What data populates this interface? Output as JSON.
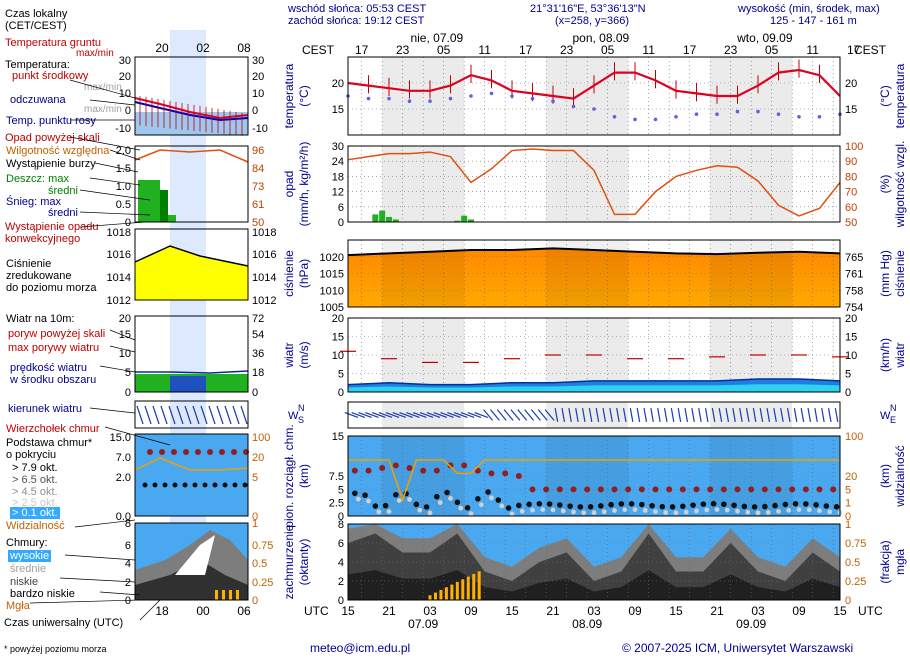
{
  "header": {
    "sunrise": "wschód słońca: 05:53 CEST",
    "sunset": "zachód słońca: 19:12 CEST",
    "coords": "21°31'16\"E, 53°36'13\"N",
    "grid": "(x=258,  y=366)",
    "elev_title": "wysokość (min, środek, max)",
    "elev_values": "125 - 147 - 161 m",
    "cest": "CEST",
    "utc": "UTC"
  },
  "days_top": [
    {
      "label": "nie, 07.09",
      "hour": 13
    },
    {
      "label": "pon, 08.09",
      "hour": 37
    },
    {
      "label": "wto, 09.09",
      "hour": 61
    }
  ],
  "days_bottom": [
    {
      "label": "07.09",
      "hour": 11
    },
    {
      "label": "08.09",
      "hour": 35
    },
    {
      "label": "09.09",
      "hour": 59
    }
  ],
  "cest_ticks": [
    "17",
    "23",
    "05",
    "11",
    "17",
    "23",
    "05",
    "11",
    "17",
    "23",
    "05",
    "11",
    "17"
  ],
  "utc_ticks": [
    "15",
    "21",
    "03",
    "09",
    "15",
    "21",
    "03",
    "09",
    "15",
    "21",
    "03",
    "09",
    "15"
  ],
  "legend": {
    "local_time": "Czas lokalny",
    "local_time2": "(CET/CEST)",
    "ground_temp": "Temperatura gruntu",
    "ground_temp_mm": "max/min",
    "temperature": "Temperatura:",
    "mid_point": "punkt środkowy",
    "max_min": "max/min",
    "felt": "odczuwana",
    "felt_mm": "max/min",
    "dew": "Temp. punktu rosy",
    "precip_above": "Opad powyżej skali",
    "humidity": "Wilgotność względna",
    "storm": "Wystąpienie burzy",
    "rain_max": "Deszcz: max",
    "rain_avg": "średni",
    "snow_max": "Śnieg:   max",
    "snow_avg": "średni",
    "conv": "Wystąpienie opadu",
    "conv2": "konwekcyjnego",
    "pressure": "Ciśnienie",
    "pressure2": "zredukowane",
    "pressure3": "do poziomu morza",
    "wind": "Wiatr na 10m:",
    "gust_above": "poryw powyżej skali",
    "gust_max": "max porywy wiatru",
    "wind_speed": "prędkość wiatru",
    "wind_area": "w środku obszaru",
    "wind_dir": "kierunek wiatru",
    "cloud_top": "Wierzchołek chmur",
    "cloud_base": "Podstawa chmur*",
    "cloud_base2": "o pokryciu",
    "okt1": "> 7.9 okt.",
    "okt2": "> 6.5 okt.",
    "okt3": "> 4.5 okt.",
    "okt4": "> 2.5 okt.",
    "okt5": "> 0.1 okt.",
    "visibility": "Widzialność",
    "clouds": "Chmury:",
    "high": "wysokie",
    "mid": "średnie",
    "low": "niskie",
    "very_low": "bardzo niskie",
    "fog": "Mgła",
    "utc_time": "Czas uniwersalny (UTC)",
    "footnote": "* powyżej poziomu morza"
  },
  "mini_ticks_top": [
    "20",
    "02",
    "08"
  ],
  "mini_ticks_bottom": [
    "18",
    "00",
    "06"
  ],
  "axes": {
    "temp_l": "temperatura",
    "temp_l2": "(°C)",
    "temp_r": "temperatura",
    "temp_r2": "(°C)",
    "prec_l": "opad",
    "prec_l2": "(mm/h, kg/m²/h)",
    "prec_r": "wilgotność wzgl.",
    "prec_r2": "(%)",
    "pres_l": "ciśnienie",
    "pres_l2": "(hPa)",
    "pres_r": "ciśnienie",
    "pres_r2": "(mm Hg)",
    "wind_l": "wiatr",
    "wind_l2": "(m/s)",
    "wind_r": "wiatr",
    "wind_r2": "(km/h)",
    "cloud_l": "pion. rozciągł. chm.",
    "cloud_l2": "(km)",
    "cloud_r": "widzialność",
    "cloud_r2": "(km)",
    "cc_l": "zachmurzenie",
    "cc_l2": "(oktanty)",
    "cc_r": "mgła",
    "cc_r2": "(frakcja)",
    "compass_n": "N",
    "compass_w": "W",
    "compass_e": "E",
    "compass_s": "S"
  },
  "footer": {
    "email": "meteo@icm.edu.pl",
    "copyright": "© 2007-2025 ICM, Uniwersytet Warszawski"
  },
  "chart_data": [
    {
      "type": "line",
      "name": "temperature",
      "x_unit": "hours from 15 UTC 06.09",
      "ylim": [
        10,
        25
      ],
      "yticks": [
        15,
        20
      ],
      "x": [
        0,
        3,
        6,
        9,
        12,
        15,
        18,
        21,
        24,
        27,
        30,
        33,
        36,
        39,
        42,
        45,
        48,
        51,
        54,
        57,
        60,
        63,
        66,
        69,
        72
      ],
      "series": [
        {
          "name": "punkt środkowy",
          "values": [
            20,
            19.5,
            19,
            18.5,
            18.5,
            19.5,
            21.5,
            20.5,
            18.5,
            18,
            17.5,
            17,
            19.5,
            22,
            22,
            20.5,
            18.5,
            18,
            17.5,
            17.5,
            19.5,
            22,
            22.5,
            21.5,
            17.5
          ]
        },
        {
          "name": "Temp. punktu rosy",
          "values": [
            17.5,
            17,
            17,
            16.5,
            16.5,
            17,
            17.5,
            18,
            17.5,
            17,
            16.5,
            15.5,
            15,
            13.5,
            13,
            13,
            13.5,
            14,
            14,
            14.5,
            14.5,
            14,
            13.5,
            13.5,
            14
          ]
        }
      ],
      "label_series": [
        {
          "name": "Temperatura gruntu max/min",
          "values": [
            17.5,
            17,
            17,
            16.5,
            16.5,
            17,
            17.5,
            18,
            17.5,
            17,
            16.5,
            15.5,
            15,
            13.5,
            13,
            13,
            13.5,
            14,
            14,
            14.5,
            14.5,
            14,
            13.5,
            13.5,
            14
          ]
        }
      ]
    },
    {
      "type": "bar",
      "name": "precipitation",
      "ylim": [
        0,
        30
      ],
      "yticks": [
        0,
        6,
        12,
        18,
        24,
        30
      ],
      "rain_x": [
        4,
        5,
        6,
        7,
        16,
        17,
        18
      ],
      "rain_values": [
        3,
        4.5,
        2,
        1,
        0.5,
        2.5,
        1
      ],
      "humidity_x": [
        0,
        3,
        6,
        9,
        12,
        15,
        18,
        21,
        24,
        27,
        30,
        33,
        36,
        39,
        42,
        45,
        48,
        51,
        54,
        57,
        60,
        63,
        66,
        69,
        72
      ],
      "humidity_values": [
        91,
        93,
        95,
        95,
        96,
        93,
        76,
        85,
        97,
        98,
        97,
        97,
        84,
        55,
        55,
        70,
        80,
        84,
        87,
        86,
        77,
        61,
        54,
        59,
        76
      ],
      "humidity_ylim": [
        50,
        100
      ],
      "humidity_ticks": [
        50,
        60,
        70,
        80,
        90,
        100
      ]
    },
    {
      "type": "area",
      "name": "pressure",
      "ylim": [
        1005,
        1025
      ],
      "yticks": [
        1005,
        1010,
        1015,
        1020
      ],
      "mmhg_ticks": [
        754,
        758,
        761,
        765
      ],
      "x": [
        0,
        6,
        12,
        18,
        24,
        30,
        36,
        42,
        48,
        54,
        60,
        66,
        72
      ],
      "values": [
        1020.5,
        1021,
        1021.5,
        1022,
        1022,
        1022.5,
        1022,
        1021.5,
        1021,
        1020.8,
        1021.2,
        1021.5,
        1021
      ]
    },
    {
      "type": "line",
      "name": "wind",
      "ylim": [
        0,
        20
      ],
      "yticks": [
        0,
        5,
        10,
        15,
        20
      ],
      "kmh_ticks": [
        0,
        18,
        36,
        54,
        72
      ],
      "x": [
        0,
        6,
        12,
        18,
        24,
        30,
        36,
        42,
        48,
        54,
        60,
        66,
        72
      ],
      "speed": [
        2,
        2.5,
        2,
        2,
        2.5,
        2.5,
        3,
        3,
        3,
        3,
        3.5,
        3.5,
        3
      ],
      "gust": [
        11,
        9,
        8,
        8,
        9,
        10,
        10,
        9,
        9,
        9.5,
        10,
        10,
        9.5
      ]
    },
    {
      "type": "scatter",
      "name": "clouds",
      "ylim": [
        0,
        15
      ],
      "yticks": [
        0,
        2.5,
        5,
        7.5,
        15
      ],
      "vis_ticks": [
        0,
        1,
        5,
        20,
        100
      ],
      "top_x": [
        1,
        3,
        5,
        7,
        9,
        11,
        13,
        15,
        17,
        19,
        21,
        23,
        25,
        27,
        29,
        31,
        33,
        35,
        37,
        39,
        41,
        43,
        45,
        47,
        49,
        51,
        53,
        55,
        57,
        59,
        61,
        63,
        65,
        67,
        69,
        71
      ],
      "top_values": [
        8.5,
        8.5,
        9,
        9.5,
        9,
        8.5,
        8.5,
        9.5,
        9.5,
        8.5,
        8,
        8,
        7.5,
        5,
        5,
        5,
        5,
        5,
        5,
        5,
        5,
        5,
        5,
        5,
        5,
        5,
        5,
        5,
        5,
        5,
        5,
        5,
        5,
        5,
        5,
        5
      ]
    },
    {
      "type": "area",
      "name": "cloud cover",
      "ylim": [
        0,
        8
      ],
      "yticks": [
        0,
        2,
        4,
        6,
        8
      ],
      "fog_ticks": [
        0,
        0.25,
        0.5,
        0.75,
        1
      ],
      "x": [
        0,
        4,
        8,
        12,
        16,
        20,
        24,
        28,
        32,
        36,
        40,
        44,
        48,
        52,
        56,
        60,
        64,
        68,
        72
      ],
      "values": [
        6,
        7,
        5,
        5,
        7,
        3,
        2,
        4,
        5,
        2,
        3,
        7,
        3,
        3,
        6,
        3,
        2,
        5,
        3
      ]
    }
  ]
}
